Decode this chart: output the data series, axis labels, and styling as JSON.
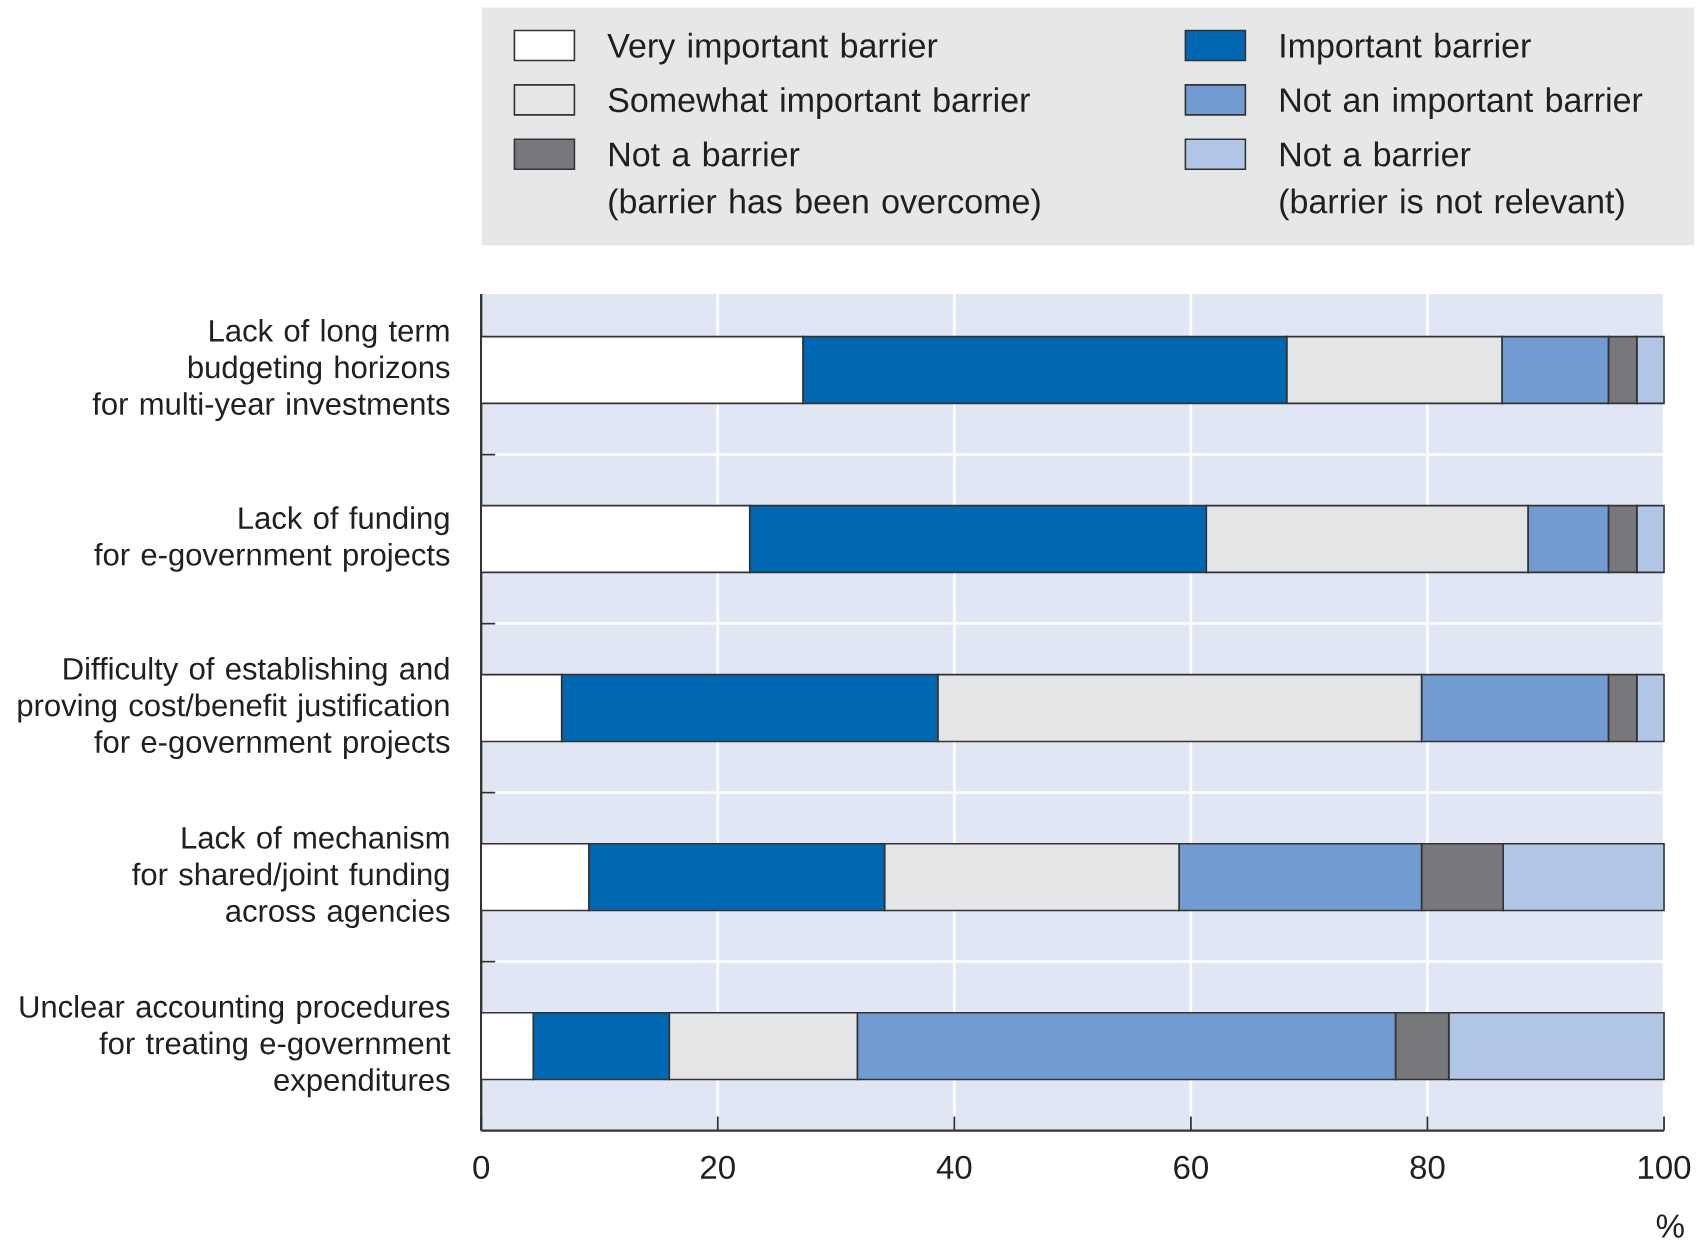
{
  "chart_data": {
    "type": "bar",
    "orientation": "horizontal",
    "stacked": true,
    "categories": [
      "Lack of long term\nbudgeting horizons\nfor multi-year investments",
      "Lack of funding\nfor e-government projects",
      "Difficulty of establishing and\nproving cost/benefit justification\nfor e-government projects",
      "Lack of mechanism\nfor shared/joint funding\nacross agencies",
      "Unclear accounting procedures\nfor treating e-government\nexpenditures"
    ],
    "series": [
      {
        "name": "Very important barrier",
        "color": "#ffffff",
        "values": [
          27.2,
          22.7,
          6.8,
          9.1,
          4.4
        ]
      },
      {
        "name": "Important barrier",
        "color": "#0068b3",
        "values": [
          40.9,
          38.6,
          31.8,
          25.0,
          11.5
        ]
      },
      {
        "name": "Somewhat important barrier",
        "color": "#e4e5e6",
        "values": [
          18.2,
          27.2,
          40.9,
          24.9,
          15.9
        ]
      },
      {
        "name": "Not an important barrier",
        "color": "#719bd1",
        "values": [
          9.0,
          6.8,
          15.8,
          20.5,
          45.5
        ]
      },
      {
        "name": "Not a barrier\n(barrier has been overcome)",
        "color": "#77787b",
        "values": [
          2.4,
          2.4,
          2.4,
          6.9,
          4.5
        ]
      },
      {
        "name": "Not a barrier\n(barrier is not relevant)",
        "color": "#b1c5e7",
        "values": [
          2.3,
          2.3,
          2.3,
          13.6,
          18.2
        ]
      }
    ],
    "xlim": [
      0,
      100
    ],
    "xticks": [
      0,
      20,
      40,
      60,
      80,
      100
    ],
    "xlabel": "%",
    "grid": true,
    "legend": "top"
  }
}
